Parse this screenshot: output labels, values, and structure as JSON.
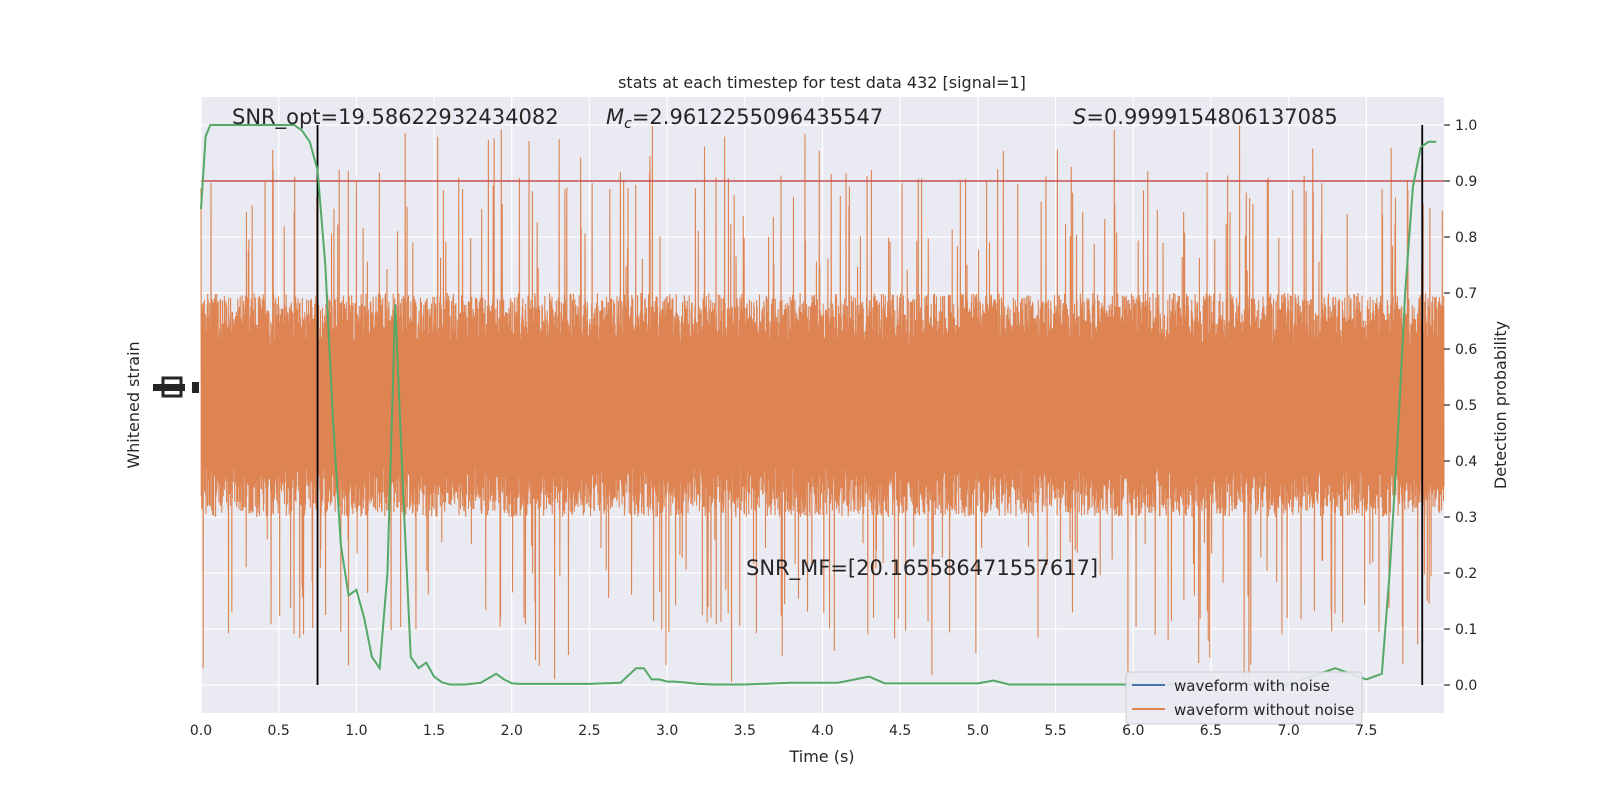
{
  "chart_data": {
    "type": "line",
    "title": "stats at each timestep for test data 432 [signal=1]",
    "xlabel": "Time (s)",
    "ylabel_left": "Whitened strain",
    "ylabel_right": "Detection probability",
    "xlim": [
      0,
      8
    ],
    "ylim_right": [
      -0.05,
      1.05
    ],
    "x_ticks": [
      "0.0",
      "0.5",
      "1.0",
      "1.5",
      "2.0",
      "2.5",
      "3.0",
      "3.5",
      "4.0",
      "4.5",
      "5.0",
      "5.5",
      "6.0",
      "6.5",
      "7.0",
      "7.5"
    ],
    "x_tick_values": [
      0,
      0.5,
      1,
      1.5,
      2,
      2.5,
      3,
      3.5,
      4,
      4.5,
      5,
      5.5,
      6,
      6.5,
      7,
      7.5
    ],
    "y_right_ticks": [
      "0.0",
      "0.1",
      "0.2",
      "0.3",
      "0.4",
      "0.5",
      "0.6",
      "0.7",
      "0.8",
      "0.9",
      "1.0"
    ],
    "y_right_tick_values": [
      0,
      0.1,
      0.2,
      0.3,
      0.4,
      0.5,
      0.6,
      0.7,
      0.8,
      0.9,
      1.0
    ],
    "grid": true,
    "legend_position": "lower-right",
    "annotations": {
      "snr_opt": "SNR_opt=19.58622932434082",
      "mc_symbol": "M",
      "mc_sub": "c",
      "mc_value": "=2.9612255096435547",
      "s_symbol": "S",
      "s_value": "=0.9999154806137085",
      "snr_mf": "SNR_MF=[20.165586471557617]"
    },
    "threshold": {
      "value": 0.9,
      "color": "#c44e52"
    },
    "vertical_lines": [
      0.75,
      7.86
    ],
    "strain_envelope": {
      "center": 0.5,
      "typical_extent": 0.2,
      "peak_extent": 0.5
    },
    "series": [
      {
        "name": "waveform with noise",
        "color": "#4c72b0"
      },
      {
        "name": "waveform without noise",
        "color": "#dd8452"
      },
      {
        "color": "#55a868",
        "x": [
          0.0,
          0.03,
          0.06,
          0.15,
          0.3,
          0.45,
          0.6,
          0.65,
          0.7,
          0.75,
          0.8,
          0.85,
          0.9,
          0.95,
          1.0,
          1.05,
          1.1,
          1.15,
          1.2,
          1.25,
          1.3,
          1.35,
          1.4,
          1.45,
          1.5,
          1.55,
          1.6,
          1.65,
          1.7,
          1.8,
          1.9,
          1.95,
          2.0,
          2.05,
          2.1,
          2.2,
          2.5,
          2.7,
          2.8,
          2.85,
          2.9,
          2.95,
          3.0,
          3.05,
          3.1,
          3.2,
          3.3,
          3.5,
          3.8,
          4.1,
          4.3,
          4.4,
          4.6,
          5.0,
          5.1,
          5.2,
          5.3,
          5.7,
          6.0,
          6.5,
          7.0,
          7.3,
          7.4,
          7.5,
          7.6,
          7.65,
          7.7,
          7.75,
          7.8,
          7.85,
          7.9,
          7.95
        ],
        "y": [
          0.85,
          0.98,
          1.0,
          1.0,
          1.0,
          1.0,
          1.0,
          0.99,
          0.97,
          0.92,
          0.75,
          0.47,
          0.25,
          0.16,
          0.17,
          0.12,
          0.05,
          0.03,
          0.2,
          0.68,
          0.35,
          0.05,
          0.03,
          0.04,
          0.015,
          0.005,
          0.001,
          0.001,
          0.001,
          0.004,
          0.02,
          0.01,
          0.003,
          0.002,
          0.002,
          0.002,
          0.002,
          0.004,
          0.03,
          0.03,
          0.01,
          0.01,
          0.006,
          0.006,
          0.005,
          0.002,
          0.001,
          0.001,
          0.004,
          0.004,
          0.015,
          0.003,
          0.003,
          0.003,
          0.008,
          0.001,
          0.001,
          0.001,
          0.001,
          0.001,
          0.001,
          0.03,
          0.02,
          0.01,
          0.02,
          0.2,
          0.43,
          0.7,
          0.89,
          0.96,
          0.97,
          0.97
        ]
      }
    ]
  }
}
